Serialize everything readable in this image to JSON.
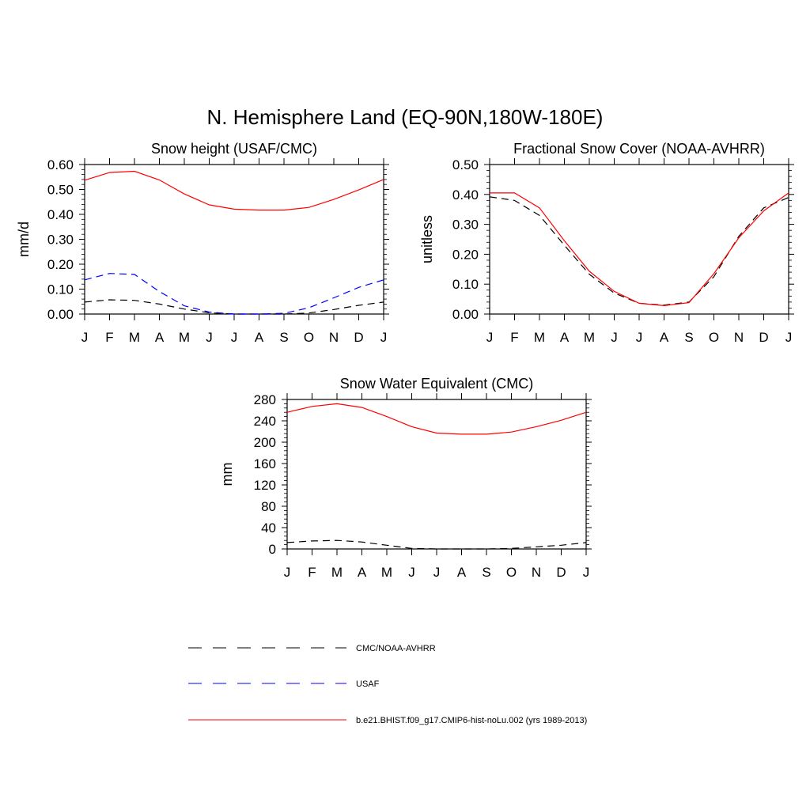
{
  "title": "N. Hemisphere Land (EQ-90N,180W-180E)",
  "colors": {
    "model": "#ff0000",
    "obs_black": "#000000",
    "obs_blue": "#0000ff"
  },
  "chart_data": [
    {
      "type": "line",
      "title": "Snow height (USAF/CMC)",
      "ylabel": "mm/d",
      "xlabel": "",
      "x": [
        "J",
        "F",
        "M",
        "A",
        "M",
        "J",
        "J",
        "A",
        "S",
        "O",
        "N",
        "D",
        "J"
      ],
      "ylim": [
        0,
        0.6
      ],
      "yticks": [
        "0.00",
        "0.10",
        "0.20",
        "0.30",
        "0.40",
        "0.50",
        "0.60"
      ],
      "series": [
        {
          "name": "CMC/NOAA-AVHRR",
          "color": "#000000",
          "dash": true,
          "values": [
            0.048,
            0.057,
            0.055,
            0.04,
            0.02,
            0.005,
            0.0,
            0.0,
            0.0,
            0.004,
            0.018,
            0.035,
            0.048
          ]
        },
        {
          "name": "USAF",
          "color": "#0000ff",
          "dash": true,
          "values": [
            0.137,
            0.163,
            0.159,
            0.09,
            0.033,
            0.008,
            0.0,
            0.0,
            0.003,
            0.025,
            0.065,
            0.107,
            0.137
          ]
        },
        {
          "name": "b.e21.BHIST.f09_g17.CMIP6-hist-noLu.002 (yrs 1989-2013)",
          "color": "#ff0000",
          "dash": false,
          "values": [
            0.537,
            0.568,
            0.573,
            0.538,
            0.482,
            0.438,
            0.421,
            0.417,
            0.417,
            0.428,
            0.46,
            0.498,
            0.54
          ]
        }
      ]
    },
    {
      "type": "line",
      "title": "Fractional Snow Cover (NOAA-AVHRR)",
      "ylabel": "unitless",
      "xlabel": "",
      "x": [
        "J",
        "F",
        "M",
        "A",
        "M",
        "J",
        "J",
        "A",
        "S",
        "O",
        "N",
        "D",
        "J"
      ],
      "ylim": [
        0,
        0.5
      ],
      "yticks": [
        "0.00",
        "0.10",
        "0.20",
        "0.30",
        "0.40",
        "0.50"
      ],
      "series": [
        {
          "name": "CMC/NOAA-AVHRR",
          "color": "#000000",
          "dash": true,
          "values": [
            0.392,
            0.38,
            0.33,
            0.23,
            0.133,
            0.07,
            0.036,
            0.03,
            0.04,
            0.125,
            0.26,
            0.355,
            0.39
          ]
        },
        {
          "name": "b.e21.BHIST.f09_g17.CMIP6-hist-noLu.002 (yrs 1989-2013)",
          "color": "#ff0000",
          "dash": false,
          "values": [
            0.405,
            0.405,
            0.355,
            0.245,
            0.143,
            0.076,
            0.036,
            0.028,
            0.038,
            0.135,
            0.255,
            0.345,
            0.405
          ]
        }
      ]
    },
    {
      "type": "line",
      "title": "Snow Water Equivalent (CMC)",
      "ylabel": "mm",
      "xlabel": "",
      "x": [
        "J",
        "F",
        "M",
        "A",
        "M",
        "J",
        "J",
        "A",
        "S",
        "O",
        "N",
        "D",
        "J"
      ],
      "ylim": [
        0,
        280
      ],
      "yticks": [
        "0",
        "40",
        "80",
        "120",
        "160",
        "200",
        "240",
        "280"
      ],
      "series": [
        {
          "name": "CMC/NOAA-AVHRR",
          "color": "#000000",
          "dash": true,
          "values": [
            12,
            15,
            16,
            13,
            7,
            1,
            0,
            0,
            0,
            1,
            4,
            7,
            12
          ]
        },
        {
          "name": "b.e21.BHIST.f09_g17.CMIP6-hist-noLu.002 (yrs 1989-2013)",
          "color": "#ff0000",
          "dash": false,
          "values": [
            256,
            267,
            272,
            265,
            248,
            229,
            217,
            215,
            215,
            219,
            229,
            241,
            256
          ]
        }
      ]
    }
  ],
  "legend": [
    {
      "label": "CMC/NOAA-AVHRR",
      "color": "#000000",
      "dash": true
    },
    {
      "label": "USAF",
      "color": "#0000ff",
      "dash": true
    },
    {
      "label": "b.e21.BHIST.f09_g17.CMIP6-hist-noLu.002 (yrs 1989-2013)",
      "color": "#ff0000",
      "dash": false
    }
  ]
}
